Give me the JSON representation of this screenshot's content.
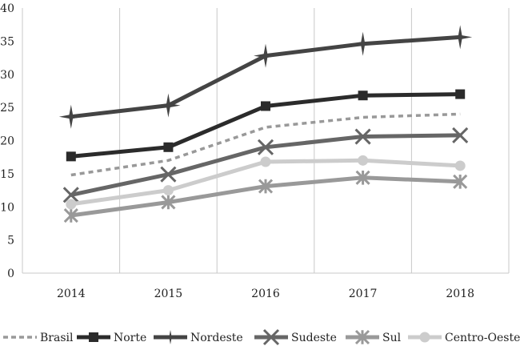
{
  "chart_data": {
    "type": "line",
    "title": "",
    "xlabel": "",
    "ylabel": "",
    "categories": [
      "2014",
      "2015",
      "2016",
      "2017",
      "2018"
    ],
    "ylim": [
      0,
      40
    ],
    "yticks": [
      "0",
      "5",
      "10",
      "15",
      "20",
      "25",
      "30",
      "35",
      "40"
    ],
    "grid": "vertical",
    "legend_position": "bottom",
    "series": [
      {
        "name": "Brasil",
        "values": [
          14.8,
          17.0,
          22.0,
          23.5,
          24.0
        ],
        "color": "#999999",
        "style": "dashed",
        "marker": "none"
      },
      {
        "name": "Norte",
        "values": [
          17.6,
          19.0,
          25.2,
          26.8,
          27.0
        ],
        "color": "#2b2b2b",
        "style": "solid",
        "marker": "square"
      },
      {
        "name": "Nordeste",
        "values": [
          23.6,
          25.3,
          32.8,
          34.6,
          35.6
        ],
        "color": "#444444",
        "style": "solid",
        "marker": "star"
      },
      {
        "name": "Sudeste",
        "values": [
          11.8,
          14.9,
          19.0,
          20.6,
          20.8
        ],
        "color": "#666666",
        "style": "solid",
        "marker": "x"
      },
      {
        "name": "Sul",
        "values": [
          8.7,
          10.7,
          13.1,
          14.4,
          13.8
        ],
        "color": "#999999",
        "style": "solid",
        "marker": "asterisk"
      },
      {
        "name": "Centro-Oeste",
        "values": [
          10.4,
          12.5,
          16.8,
          17.0,
          16.2
        ],
        "color": "#cccccc",
        "style": "solid",
        "marker": "circle"
      }
    ]
  }
}
